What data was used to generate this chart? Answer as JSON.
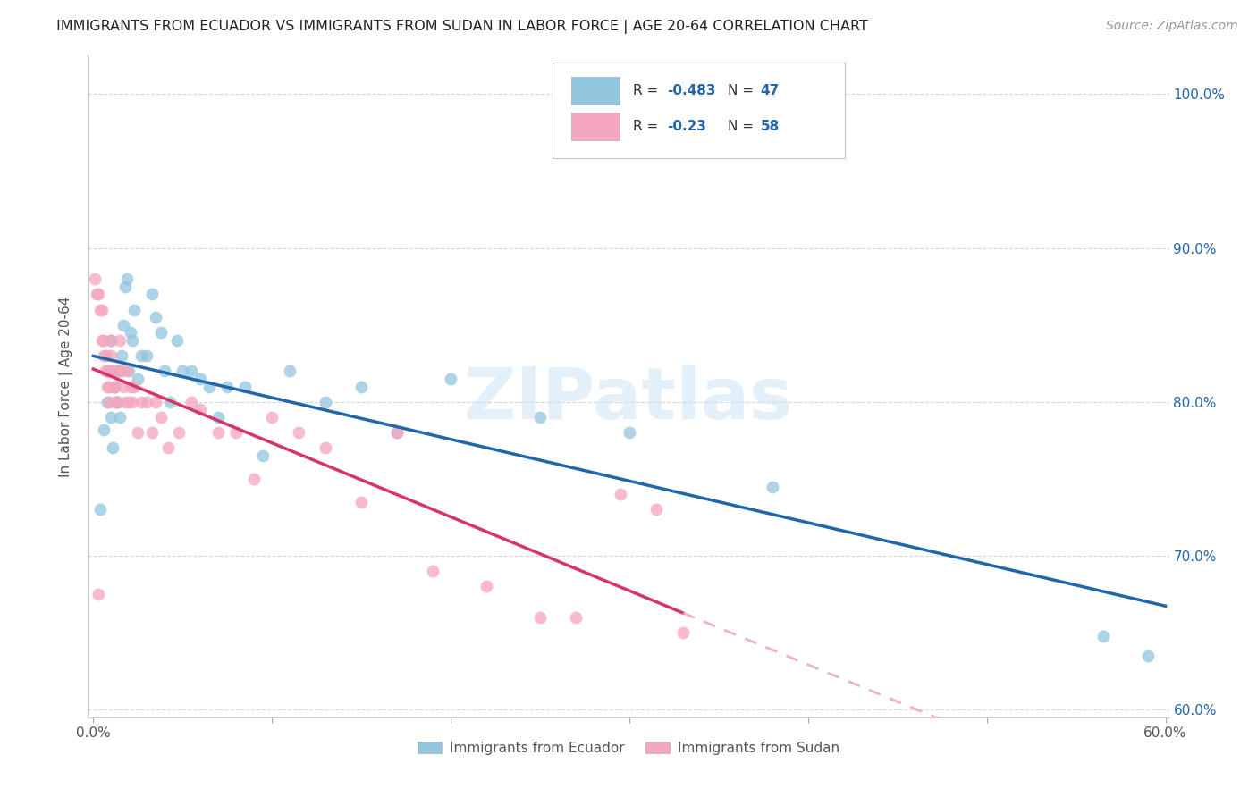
{
  "title": "IMMIGRANTS FROM ECUADOR VS IMMIGRANTS FROM SUDAN IN LABOR FORCE | AGE 20-64 CORRELATION CHART",
  "source": "Source: ZipAtlas.com",
  "ylabel": "In Labor Force | Age 20-64",
  "r_ecuador": -0.483,
  "n_ecuador": 47,
  "r_sudan": -0.23,
  "n_sudan": 58,
  "color_ecuador": "#92c5de",
  "color_sudan": "#f4a6be",
  "trendline_ecuador": "#2166ac",
  "trendline_sudan": "#d6356a",
  "trendline_sudan_dashed_color": "#e8a0b8",
  "watermark": "ZIPatlas",
  "xlim": [
    -0.003,
    0.602
  ],
  "ylim": [
    0.595,
    1.025
  ],
  "xtick_positions": [
    0.0,
    0.1,
    0.2,
    0.3,
    0.4,
    0.5,
    0.6
  ],
  "xtick_labels_show": [
    "0.0%",
    "",
    "",
    "",
    "",
    "",
    "60.0%"
  ],
  "ytick_positions": [
    0.6,
    0.7,
    0.8,
    0.9,
    1.0
  ],
  "ytick_labels": [
    "60.0%",
    "70.0%",
    "80.0%",
    "90.0%",
    "100.0%"
  ],
  "ecuador_x": [
    0.004,
    0.006,
    0.008,
    0.009,
    0.01,
    0.01,
    0.011,
    0.012,
    0.013,
    0.014,
    0.014,
    0.015,
    0.016,
    0.017,
    0.018,
    0.019,
    0.02,
    0.021,
    0.022,
    0.023,
    0.025,
    0.027,
    0.03,
    0.033,
    0.035,
    0.038,
    0.04,
    0.043,
    0.047,
    0.05,
    0.055,
    0.06,
    0.065,
    0.07,
    0.075,
    0.085,
    0.095,
    0.11,
    0.13,
    0.15,
    0.17,
    0.2,
    0.25,
    0.3,
    0.38,
    0.565,
    0.59
  ],
  "ecuador_y": [
    0.73,
    0.782,
    0.8,
    0.82,
    0.84,
    0.79,
    0.77,
    0.81,
    0.8,
    0.82,
    0.8,
    0.79,
    0.83,
    0.85,
    0.875,
    0.88,
    0.82,
    0.845,
    0.84,
    0.86,
    0.815,
    0.83,
    0.83,
    0.87,
    0.855,
    0.845,
    0.82,
    0.8,
    0.84,
    0.82,
    0.82,
    0.815,
    0.81,
    0.79,
    0.81,
    0.81,
    0.765,
    0.82,
    0.8,
    0.81,
    0.78,
    0.815,
    0.79,
    0.78,
    0.745,
    0.648,
    0.635
  ],
  "sudan_x": [
    0.001,
    0.002,
    0.003,
    0.004,
    0.005,
    0.005,
    0.006,
    0.006,
    0.007,
    0.007,
    0.008,
    0.008,
    0.009,
    0.009,
    0.01,
    0.01,
    0.011,
    0.011,
    0.012,
    0.012,
    0.013,
    0.013,
    0.014,
    0.015,
    0.016,
    0.017,
    0.018,
    0.019,
    0.02,
    0.021,
    0.022,
    0.023,
    0.025,
    0.027,
    0.03,
    0.033,
    0.035,
    0.038,
    0.042,
    0.048,
    0.055,
    0.06,
    0.07,
    0.08,
    0.09,
    0.1,
    0.115,
    0.13,
    0.15,
    0.17,
    0.19,
    0.22,
    0.25,
    0.27,
    0.295,
    0.315,
    0.33,
    0.003
  ],
  "sudan_y": [
    0.88,
    0.87,
    0.87,
    0.86,
    0.86,
    0.84,
    0.84,
    0.83,
    0.83,
    0.82,
    0.82,
    0.81,
    0.81,
    0.8,
    0.84,
    0.83,
    0.82,
    0.82,
    0.81,
    0.81,
    0.8,
    0.8,
    0.82,
    0.84,
    0.82,
    0.81,
    0.8,
    0.82,
    0.8,
    0.81,
    0.8,
    0.81,
    0.78,
    0.8,
    0.8,
    0.78,
    0.8,
    0.79,
    0.77,
    0.78,
    0.8,
    0.795,
    0.78,
    0.78,
    0.75,
    0.79,
    0.78,
    0.77,
    0.735,
    0.78,
    0.69,
    0.68,
    0.66,
    0.66,
    0.74,
    0.73,
    0.65,
    0.675
  ]
}
